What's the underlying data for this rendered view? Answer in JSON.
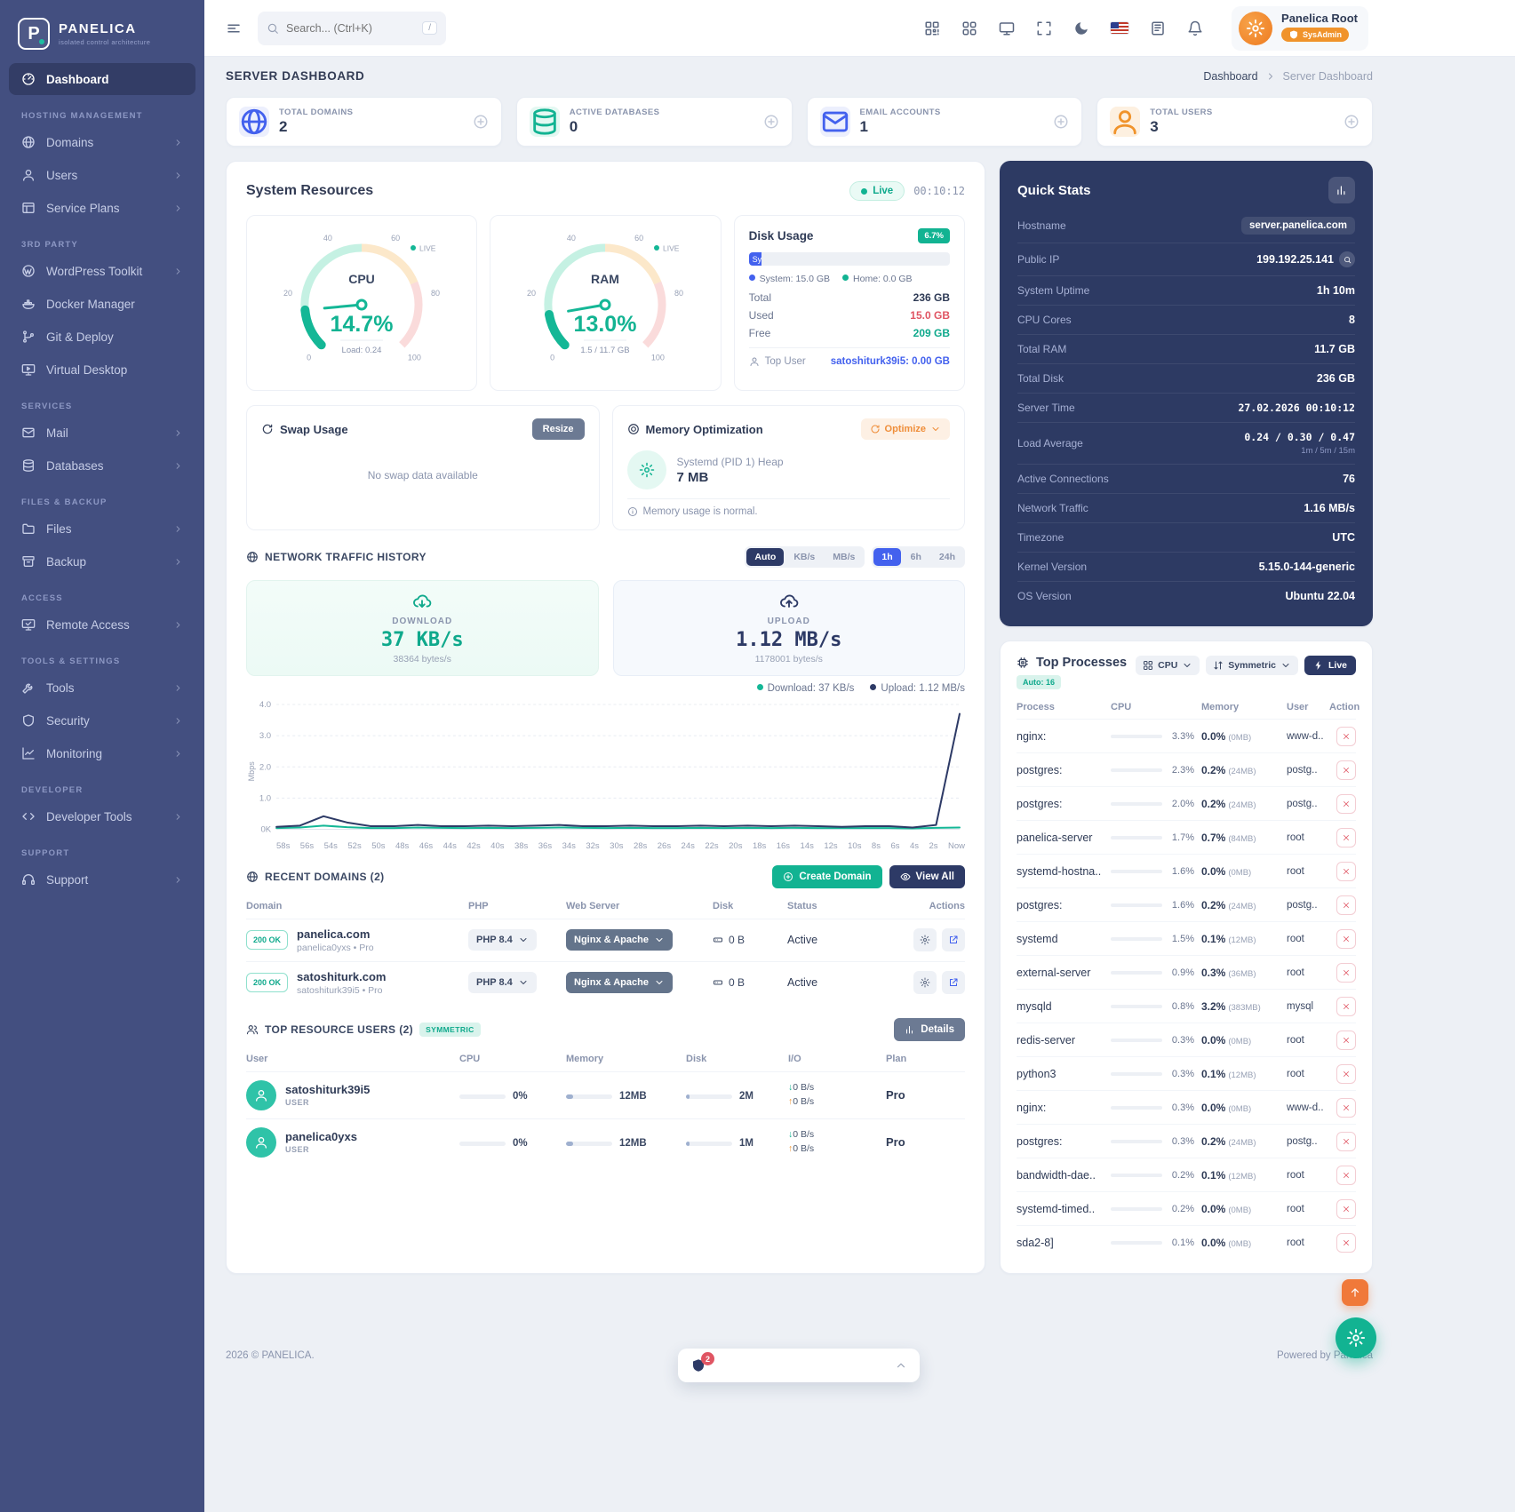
{
  "brand": {
    "name": "PANELICA",
    "tagline": "isolated control architecture"
  },
  "topbar": {
    "search_placeholder": "Search... (Ctrl+K)",
    "search_shortcut": "/",
    "icons": [
      {
        "icon": "qr",
        "name": "qr-code"
      },
      {
        "icon": "apps",
        "name": "apps-grid"
      },
      {
        "icon": "display",
        "name": "display"
      },
      {
        "icon": "expand",
        "name": "fullscreen"
      },
      {
        "icon": "moon",
        "name": "dark-mode"
      },
      {
        "icon": "flag",
        "name": "language-flag-us"
      },
      {
        "icon": "notes",
        "name": "changelog-notes"
      },
      {
        "icon": "bell",
        "name": "notifications-bell"
      }
    ],
    "user_name": "Panelica Root",
    "user_role": "SysAdmin"
  },
  "sidebar": {
    "sections": [
      {
        "title": "",
        "items": [
          {
            "label": "Dashboard",
            "icon": "gauge",
            "active": true,
            "arrow": false
          }
        ]
      },
      {
        "title": "HOSTING MANAGEMENT",
        "items": [
          {
            "label": "Domains",
            "icon": "globe",
            "arrow": true
          },
          {
            "label": "Users",
            "icon": "user",
            "arrow": true
          },
          {
            "label": "Service Plans",
            "icon": "plans",
            "arrow": true
          }
        ]
      },
      {
        "title": "3RD PARTY",
        "items": [
          {
            "label": "WordPress Toolkit",
            "icon": "wp",
            "arrow": true
          },
          {
            "label": "Docker Manager",
            "icon": "docker",
            "arrow": false
          },
          {
            "label": "Git & Deploy",
            "icon": "git",
            "arrow": false
          },
          {
            "label": "Virtual Desktop",
            "icon": "desktop",
            "arrow": false
          }
        ]
      },
      {
        "title": "SERVICES",
        "items": [
          {
            "label": "Mail",
            "icon": "mail",
            "arrow": true
          },
          {
            "label": "Databases",
            "icon": "db",
            "arrow": true
          }
        ]
      },
      {
        "title": "FILES & BACKUP",
        "items": [
          {
            "label": "Files",
            "icon": "folder",
            "arrow": true
          },
          {
            "label": "Backup",
            "icon": "archive",
            "arrow": true
          }
        ]
      },
      {
        "title": "ACCESS",
        "items": [
          {
            "label": "Remote Access",
            "icon": "remote",
            "arrow": true
          }
        ]
      },
      {
        "title": "TOOLS & SETTINGS",
        "items": [
          {
            "label": "Tools",
            "icon": "wrench",
            "arrow": true
          },
          {
            "label": "Security",
            "icon": "shield",
            "arrow": true
          },
          {
            "label": "Monitoring",
            "icon": "chart",
            "arrow": true
          }
        ]
      },
      {
        "title": "DEVELOPER",
        "items": [
          {
            "label": "Developer Tools",
            "icon": "code",
            "arrow": true
          }
        ]
      },
      {
        "title": "SUPPORT",
        "items": [
          {
            "label": "Support",
            "icon": "headset",
            "arrow": true
          }
        ]
      }
    ]
  },
  "page": {
    "title": "SERVER DASHBOARD",
    "breadcrumb": [
      "Dashboard",
      "Server Dashboard"
    ],
    "footer_left": "2026 © PANELICA.",
    "footer_right": "Powered by Panelica"
  },
  "stats": [
    {
      "label": "TOTAL DOMAINS",
      "value": "2",
      "icon": "globe",
      "tint": "blue"
    },
    {
      "label": "ACTIVE DATABASES",
      "value": "0",
      "icon": "db",
      "tint": "teal"
    },
    {
      "label": "EMAIL ACCOUNTS",
      "value": "1",
      "icon": "mail",
      "tint": "blue"
    },
    {
      "label": "TOTAL USERS",
      "value": "3",
      "icon": "user",
      "tint": "orange"
    }
  ],
  "system_resources": {
    "title": "System Resources",
    "live_label": "Live",
    "timer": "00:10:12",
    "cpu": {
      "label": "CPU",
      "value": 14.7,
      "display": "14.7%",
      "sub": "Load: 0.24",
      "live": "LIVE",
      "ticks": [
        0,
        20,
        40,
        60,
        80,
        100
      ]
    },
    "ram": {
      "label": "RAM",
      "value": 13.0,
      "display": "13.0%",
      "sub": "1.5 / 11.7 GB",
      "live": "LIVE",
      "ticks": [
        0,
        20,
        40,
        60,
        80,
        100
      ]
    },
    "disk": {
      "title": "Disk Usage",
      "badge": "6.7%",
      "bar_label": "Sy",
      "used_pct": 6.4,
      "legend": [
        {
          "label": "System: 15.0 GB",
          "color": "#4361ee"
        },
        {
          "label": "Home: 0.0 GB",
          "color": "#12b392"
        }
      ],
      "rows": [
        {
          "k": "Total",
          "v": "236 GB",
          "tone": ""
        },
        {
          "k": "Used",
          "v": "15.0 GB",
          "tone": "red"
        },
        {
          "k": "Free",
          "v": "209 GB",
          "tone": "teal"
        }
      ],
      "top_user_label": "Top User",
      "top_user_value": "satoshiturk39i5: 0.00 GB"
    },
    "swap": {
      "title": "Swap Usage",
      "button": "Resize",
      "empty": "No swap data available"
    },
    "memopt": {
      "title": "Memory Optimization",
      "button": "Optimize",
      "line1": "Systemd (PID 1) Heap",
      "line2": "7 MB",
      "note": "Memory usage is normal."
    }
  },
  "network": {
    "title": "NETWORK TRAFFIC HISTORY",
    "unit_buttons": [
      "Auto",
      "KB/s",
      "MB/s"
    ],
    "active_unit": "Auto",
    "range_buttons": [
      "1h",
      "6h",
      "24h"
    ],
    "active_range": "1h",
    "download": {
      "label": "DOWNLOAD",
      "value": "37 KB/s",
      "sub": "38364 bytes/s"
    },
    "upload": {
      "label": "UPLOAD",
      "value": "1.12 MB/s",
      "sub": "1178001 bytes/s"
    },
    "legend": [
      {
        "label": "Download: 37 KB/s",
        "color": "#14b796"
      },
      {
        "label": "Upload: 1.12 MB/s",
        "color": "#2d3a66"
      }
    ]
  },
  "chart_data": {
    "type": "line",
    "title": "Network Traffic History (Mbps)",
    "ylabel": "Mbps",
    "ylim": [
      0,
      4
    ],
    "yticks": [
      "4.0",
      "3.0",
      "2.0",
      "1.0",
      "0K"
    ],
    "grid": true,
    "legend_position": "top-right",
    "x": [
      "58s",
      "56s",
      "54s",
      "52s",
      "50s",
      "48s",
      "46s",
      "44s",
      "42s",
      "40s",
      "38s",
      "36s",
      "34s",
      "32s",
      "30s",
      "28s",
      "26s",
      "24s",
      "22s",
      "20s",
      "18s",
      "16s",
      "14s",
      "12s",
      "10s",
      "8s",
      "6s",
      "4s",
      "2s",
      "Now"
    ],
    "series": [
      {
        "name": "Upload",
        "color": "#2d3a66",
        "values": [
          0.08,
          0.12,
          0.42,
          0.22,
          0.1,
          0.1,
          0.14,
          0.1,
          0.1,
          0.12,
          0.1,
          0.12,
          0.14,
          0.1,
          0.1,
          0.12,
          0.1,
          0.1,
          0.12,
          0.1,
          0.12,
          0.1,
          0.12,
          0.1,
          0.08,
          0.1,
          0.1,
          0.06,
          0.14,
          3.7
        ]
      },
      {
        "name": "Download",
        "color": "#14b796",
        "values": [
          0.04,
          0.06,
          0.12,
          0.07,
          0.04,
          0.04,
          0.06,
          0.05,
          0.04,
          0.05,
          0.04,
          0.05,
          0.06,
          0.05,
          0.04,
          0.05,
          0.04,
          0.04,
          0.05,
          0.04,
          0.05,
          0.04,
          0.05,
          0.04,
          0.04,
          0.04,
          0.04,
          0.03,
          0.05,
          0.06
        ]
      }
    ]
  },
  "recent_domains": {
    "title": "RECENT DOMAINS (2)",
    "create_button": "Create Domain",
    "view_all_button": "View All",
    "headers": [
      "Domain",
      "PHP",
      "Web Server",
      "Disk",
      "Status",
      "Actions"
    ],
    "rows": [
      {
        "ok": "200 OK",
        "domain": "panelica.com",
        "owner": "panelica0yxs • Pro",
        "php": "PHP 8.4",
        "webserver": "Nginx & Apache",
        "disk": "0 B",
        "status": "Active"
      },
      {
        "ok": "200 OK",
        "domain": "satoshiturk.com",
        "owner": "satoshiturk39i5 • Pro",
        "php": "PHP 8.4",
        "webserver": "Nginx & Apache",
        "disk": "0 B",
        "status": "Active"
      }
    ]
  },
  "top_users": {
    "title": "TOP RESOURCE USERS (2)",
    "badge": "SYMMETRIC",
    "details_button": "Details",
    "headers": [
      "User",
      "CPU",
      "Memory",
      "Disk",
      "I/O",
      "Plan"
    ],
    "rows": [
      {
        "name": "satoshiturk39i5",
        "role": "USER",
        "cpu": "0%",
        "memory": "12MB",
        "disk": "2M",
        "down": "0 B/s",
        "up": "0 B/s",
        "plan": "Pro"
      },
      {
        "name": "panelica0yxs",
        "role": "USER",
        "cpu": "0%",
        "memory": "12MB",
        "disk": "1M",
        "down": "0 B/s",
        "up": "0 B/s",
        "plan": "Pro"
      }
    ]
  },
  "quick_stats": {
    "title": "Quick Stats",
    "rows": [
      {
        "k": "Hostname",
        "v": "server.panelica.com",
        "pill": true
      },
      {
        "k": "Public IP",
        "v": "199.192.25.141",
        "search": true
      },
      {
        "k": "System Uptime",
        "v": "1h 10m"
      },
      {
        "k": "CPU Cores",
        "v": "8"
      },
      {
        "k": "Total RAM",
        "v": "11.7 GB"
      },
      {
        "k": "Total Disk",
        "v": "236 GB"
      },
      {
        "k": "Server Time",
        "v": "27.02.2026 00:10:12",
        "mono": true
      },
      {
        "k": "Load Average",
        "v": "0.24 / 0.30 / 0.47",
        "mono": true,
        "sub": "1m / 5m / 15m"
      },
      {
        "k": "Active Connections",
        "v": "76"
      },
      {
        "k": "Network Traffic",
        "v": "1.16 MB/s"
      },
      {
        "k": "Timezone",
        "v": "UTC"
      },
      {
        "k": "Kernel Version",
        "v": "5.15.0-144-generic"
      },
      {
        "k": "OS Version",
        "v": "Ubuntu 22.04"
      }
    ]
  },
  "top_processes": {
    "title": "Top Processes",
    "auto_badge": "Auto: 16",
    "cpu_dropdown": "CPU",
    "mode_dropdown": "Symmetric",
    "live_badge": "Live",
    "headers": [
      "Process",
      "CPU",
      "Memory",
      "User",
      "Action"
    ],
    "rows": [
      {
        "name": "nginx:",
        "cpu": 3.3,
        "mem": "0.0%",
        "mb": "(0MB)",
        "user": "www-d.."
      },
      {
        "name": "postgres:",
        "cpu": 2.3,
        "mem": "0.2%",
        "mb": "(24MB)",
        "user": "postg.."
      },
      {
        "name": "postgres:",
        "cpu": 2.0,
        "mem": "0.2%",
        "mb": "(24MB)",
        "user": "postg.."
      },
      {
        "name": "panelica-server",
        "cpu": 1.7,
        "mem": "0.7%",
        "mb": "(84MB)",
        "user": "root"
      },
      {
        "name": "systemd-hostna..",
        "cpu": 1.6,
        "mem": "0.0%",
        "mb": "(0MB)",
        "user": "root"
      },
      {
        "name": "postgres:",
        "cpu": 1.6,
        "mem": "0.2%",
        "mb": "(24MB)",
        "user": "postg.."
      },
      {
        "name": "systemd",
        "cpu": 1.5,
        "mem": "0.1%",
        "mb": "(12MB)",
        "user": "root"
      },
      {
        "name": "external-server",
        "cpu": 0.9,
        "mem": "0.3%",
        "mb": "(36MB)",
        "user": "root"
      },
      {
        "name": "mysqld",
        "cpu": 0.8,
        "mem": "3.2%",
        "mb": "(383MB)",
        "user": "mysql"
      },
      {
        "name": "redis-server",
        "cpu": 0.3,
        "mem": "0.0%",
        "mb": "(0MB)",
        "user": "root"
      },
      {
        "name": "python3",
        "cpu": 0.3,
        "mem": "0.1%",
        "mb": "(12MB)",
        "user": "root"
      },
      {
        "name": "nginx:",
        "cpu": 0.3,
        "mem": "0.0%",
        "mb": "(0MB)",
        "user": "www-d.."
      },
      {
        "name": "postgres:",
        "cpu": 0.3,
        "mem": "0.2%",
        "mb": "(24MB)",
        "user": "postg.."
      },
      {
        "name": "bandwidth-dae..",
        "cpu": 0.2,
        "mem": "0.1%",
        "mb": "(12MB)",
        "user": "root"
      },
      {
        "name": "systemd-timed..",
        "cpu": 0.2,
        "mem": "0.0%",
        "mb": "(0MB)",
        "user": "root"
      },
      {
        "name": "sda2-8]",
        "cpu": 0.1,
        "mem": "0.0%",
        "mb": "(0MB)",
        "user": "root"
      }
    ]
  },
  "floating": {
    "alert_count": "2"
  },
  "colors": {
    "accent_teal": "#12b392",
    "accent_blue": "#4361ee",
    "navy": "#2d3a66",
    "sidebar": "#434f80",
    "orange": "#f0932b",
    "red": "#e05563"
  }
}
